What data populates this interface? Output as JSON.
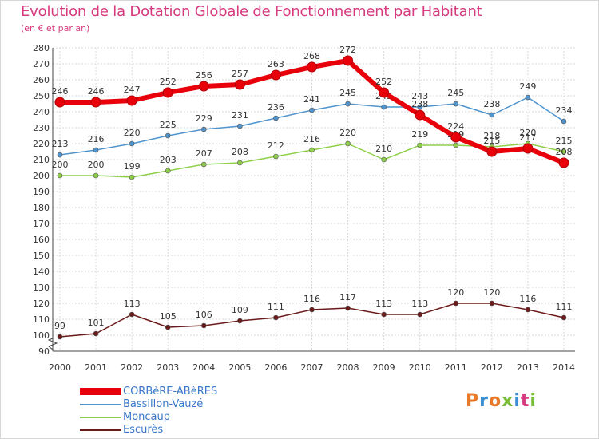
{
  "header": {
    "title": "Evolution de la Dotation Globale de Fonctionnement par Habitant",
    "subtitle": "(en € et par an)"
  },
  "brand": {
    "text": "Proxiti",
    "colors": [
      "#e8792a",
      "#3a8fd4",
      "#e8792a",
      "#7bbd3a",
      "#3a8fd4",
      "#d63a7f",
      "#7bbd3a"
    ]
  },
  "chart_data": {
    "type": "line",
    "title": "Evolution de la Dotation Globale de Fonctionnement par Habitant",
    "subtitle": "(en € et par an)",
    "xlabel": "",
    "ylabel": "",
    "categories": [
      "2000",
      "2001",
      "2002",
      "2003",
      "2004",
      "2005",
      "2006",
      "2007",
      "2008",
      "2009",
      "2010",
      "2011",
      "2012",
      "2013",
      "2014"
    ],
    "ylim": [
      90,
      280
    ],
    "yticks": [
      90,
      100,
      110,
      120,
      130,
      140,
      150,
      160,
      170,
      180,
      190,
      200,
      210,
      220,
      230,
      240,
      250,
      260,
      270,
      280
    ],
    "grid": true,
    "legend_position": "bottom-left",
    "series": [
      {
        "name": "CORBèRE-ABèRES",
        "color": "#e8000b",
        "values": [
          246,
          246,
          247,
          252,
          256,
          257,
          263,
          268,
          272,
          252,
          238,
          224,
          215,
          217,
          208
        ]
      },
      {
        "name": "Bassillon-Vauzé",
        "color": "#4f94cd",
        "values": [
          213,
          216,
          220,
          225,
          229,
          231,
          236,
          241,
          245,
          243,
          243,
          245,
          238,
          249,
          234
        ]
      },
      {
        "name": "Moncaup",
        "color": "#8fcf4a",
        "values": [
          200,
          200,
          199,
          203,
          207,
          208,
          212,
          216,
          220,
          210,
          219,
          219,
          218,
          220,
          215
        ]
      },
      {
        "name": "Escurès",
        "color": "#6b1a1a",
        "values": [
          99,
          101,
          113,
          105,
          106,
          109,
          111,
          116,
          117,
          113,
          113,
          120,
          120,
          116,
          111
        ]
      }
    ]
  }
}
